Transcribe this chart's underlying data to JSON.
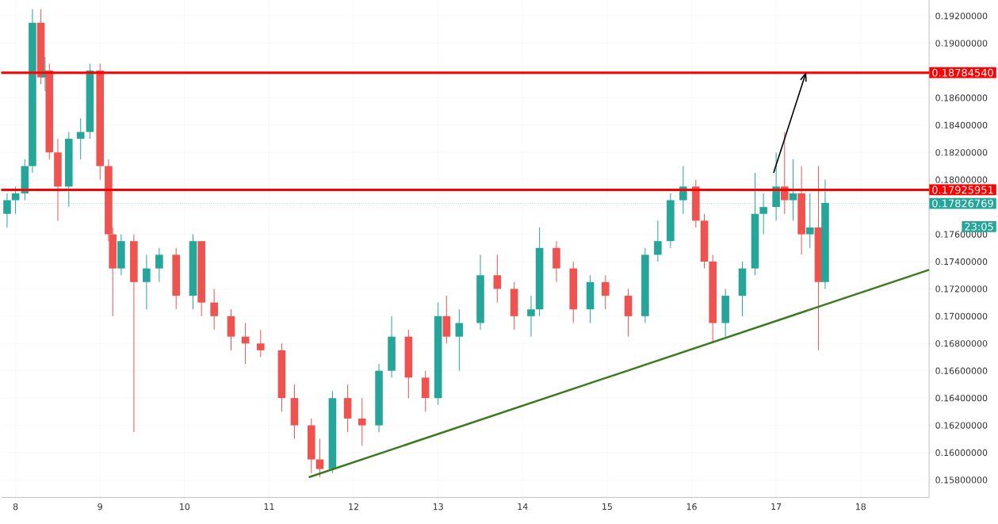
{
  "chart_data": {
    "type": "candlestick",
    "x": [
      7.9,
      8.0,
      8.11,
      8.2,
      8.3,
      8.35,
      8.4,
      8.5,
      8.63,
      8.77,
      8.88,
      9.0,
      9.1,
      9.15,
      9.25,
      9.4,
      9.55,
      9.7,
      9.9,
      10.1,
      10.2,
      10.35,
      10.55,
      10.72,
      10.9,
      11.15,
      11.3,
      11.5,
      11.6,
      11.75,
      11.93,
      12.1,
      12.3,
      12.45,
      12.65,
      12.85,
      13.0,
      13.1,
      13.25,
      13.5,
      13.7,
      13.9,
      14.1,
      14.2,
      14.4,
      14.6,
      14.8,
      14.98,
      15.25,
      15.45,
      15.6,
      15.75,
      15.9,
      16.05,
      16.15,
      16.25,
      16.4,
      16.6,
      16.75,
      16.85,
      17.0,
      17.1,
      17.2,
      17.3,
      17.4,
      17.5,
      17.58
    ],
    "ohlc": [
      [
        0.1775,
        0.179,
        0.1765,
        0.1785
      ],
      [
        0.1785,
        0.1795,
        0.1775,
        0.179
      ],
      [
        0.179,
        0.1815,
        0.1785,
        0.181
      ],
      [
        0.181,
        0.1925,
        0.1805,
        0.1915
      ],
      [
        0.1915,
        0.1925,
        0.187,
        0.1875
      ],
      [
        0.1875,
        0.189,
        0.1865,
        0.188
      ],
      [
        0.188,
        0.1885,
        0.1815,
        0.182
      ],
      [
        0.182,
        0.183,
        0.177,
        0.1795
      ],
      [
        0.1795,
        0.1835,
        0.178,
        0.183
      ],
      [
        0.183,
        0.1845,
        0.1815,
        0.1835
      ],
      [
        0.1835,
        0.1885,
        0.183,
        0.188
      ],
      [
        0.188,
        0.1885,
        0.18,
        0.181
      ],
      [
        0.181,
        0.1815,
        0.1755,
        0.176
      ],
      [
        0.176,
        0.1765,
        0.17,
        0.1735
      ],
      [
        0.1735,
        0.176,
        0.173,
        0.1755
      ],
      [
        0.1755,
        0.176,
        0.1615,
        0.1725
      ],
      [
        0.1725,
        0.1745,
        0.1705,
        0.1735
      ],
      [
        0.1735,
        0.175,
        0.1725,
        0.1745
      ],
      [
        0.1745,
        0.175,
        0.1705,
        0.1715
      ],
      [
        0.1715,
        0.176,
        0.1705,
        0.1755
      ],
      [
        0.1755,
        0.1755,
        0.17,
        0.171
      ],
      [
        0.171,
        0.172,
        0.169,
        0.17
      ],
      [
        0.17,
        0.1705,
        0.1675,
        0.1685
      ],
      [
        0.1685,
        0.1695,
        0.1665,
        0.168
      ],
      [
        0.168,
        0.169,
        0.167,
        0.1675
      ],
      [
        0.1675,
        0.168,
        0.163,
        0.164
      ],
      [
        0.164,
        0.165,
        0.161,
        0.162
      ],
      [
        0.162,
        0.1625,
        0.1585,
        0.1595
      ],
      [
        0.1595,
        0.161,
        0.1582,
        0.1588
      ],
      [
        0.1588,
        0.1645,
        0.1585,
        0.164
      ],
      [
        0.164,
        0.165,
        0.1615,
        0.1625
      ],
      [
        0.1625,
        0.164,
        0.1605,
        0.162
      ],
      [
        0.162,
        0.1665,
        0.1615,
        0.166
      ],
      [
        0.166,
        0.17,
        0.1655,
        0.1685
      ],
      [
        0.1685,
        0.169,
        0.164,
        0.1655
      ],
      [
        0.1655,
        0.166,
        0.163,
        0.164
      ],
      [
        0.164,
        0.171,
        0.1635,
        0.17
      ],
      [
        0.17,
        0.1715,
        0.168,
        0.1685
      ],
      [
        0.1685,
        0.1705,
        0.166,
        0.1695
      ],
      [
        0.1695,
        0.1745,
        0.169,
        0.173
      ],
      [
        0.173,
        0.1745,
        0.171,
        0.172
      ],
      [
        0.172,
        0.1725,
        0.169,
        0.17
      ],
      [
        0.17,
        0.1715,
        0.1685,
        0.1705
      ],
      [
        0.1705,
        0.1765,
        0.17,
        0.175
      ],
      [
        0.175,
        0.1755,
        0.1725,
        0.1735
      ],
      [
        0.1735,
        0.174,
        0.1695,
        0.1705
      ],
      [
        0.1705,
        0.173,
        0.1695,
        0.1725
      ],
      [
        0.1725,
        0.173,
        0.1705,
        0.1715
      ],
      [
        0.1715,
        0.172,
        0.1685,
        0.17
      ],
      [
        0.17,
        0.175,
        0.1695,
        0.1745
      ],
      [
        0.1745,
        0.177,
        0.174,
        0.1755
      ],
      [
        0.1755,
        0.179,
        0.175,
        0.1785
      ],
      [
        0.1785,
        0.181,
        0.1775,
        0.1795
      ],
      [
        0.1795,
        0.18,
        0.1765,
        0.177
      ],
      [
        0.177,
        0.1775,
        0.1735,
        0.174
      ],
      [
        0.174,
        0.1745,
        0.168,
        0.1695
      ],
      [
        0.1695,
        0.172,
        0.1685,
        0.1715
      ],
      [
        0.1715,
        0.174,
        0.17,
        0.1735
      ],
      [
        0.1735,
        0.1805,
        0.173,
        0.1775
      ],
      [
        0.1775,
        0.179,
        0.176,
        0.178
      ],
      [
        0.178,
        0.182,
        0.177,
        0.1795
      ],
      [
        0.1795,
        0.1835,
        0.1775,
        0.1785
      ],
      [
        0.1785,
        0.1815,
        0.177,
        0.179
      ],
      [
        0.179,
        0.181,
        0.1745,
        0.176
      ],
      [
        0.176,
        0.179,
        0.175,
        0.1765
      ],
      [
        0.1765,
        0.181,
        0.1675,
        0.1725
      ],
      [
        0.1725,
        0.18,
        0.172,
        0.1783
      ]
    ],
    "colors": [
      "#26a69a",
      "#26a69a",
      "#26a69a",
      "#26a69a",
      "#ef5350",
      "#26a69a",
      "#ef5350",
      "#ef5350",
      "#26a69a",
      "#26a69a",
      "#26a69a",
      "#ef5350",
      "#ef5350",
      "#ef5350",
      "#26a69a",
      "#ef5350",
      "#26a69a",
      "#26a69a",
      "#ef5350",
      "#26a69a",
      "#ef5350",
      "#ef5350",
      "#ef5350",
      "#ef5350",
      "#ef5350",
      "#ef5350",
      "#ef5350",
      "#ef5350",
      "#ef5350",
      "#26a69a",
      "#ef5350",
      "#ef5350",
      "#26a69a",
      "#26a69a",
      "#ef5350",
      "#ef5350",
      "#26a69a",
      "#ef5350",
      "#26a69a",
      "#26a69a",
      "#ef5350",
      "#ef5350",
      "#26a69a",
      "#26a69a",
      "#ef5350",
      "#ef5350",
      "#26a69a",
      "#ef5350",
      "#ef5350",
      "#26a69a",
      "#26a69a",
      "#26a69a",
      "#26a69a",
      "#ef5350",
      "#ef5350",
      "#ef5350",
      "#26a69a",
      "#26a69a",
      "#26a69a",
      "#26a69a",
      "#26a69a",
      "#ef5350",
      "#26a69a",
      "#ef5350",
      "#26a69a",
      "#ef5350",
      "#26a69a"
    ],
    "series": [
      {
        "type": "line",
        "color": "#3a7a1e",
        "x": [
          11.47,
          18.81
        ],
        "values": [
          0.1582,
          0.1734
        ]
      },
      {
        "type": "line",
        "color": "#000000",
        "x": [
          16.97,
          17.35
        ],
        "values": [
          0.1805,
          0.1878
        ]
      }
    ],
    "xlim": [
      7.83,
      18.81
    ],
    "ylim": [
      0.15672,
      0.19316
    ],
    "xticks": [
      8,
      9,
      10,
      11,
      12,
      13,
      14,
      15,
      16,
      17,
      18
    ],
    "yticks": [
      {
        "value": 0.158,
        "label": "0.15800000"
      },
      {
        "value": 0.16,
        "label": "0.16000000"
      },
      {
        "value": 0.162,
        "label": "0.16200000"
      },
      {
        "value": 0.164,
        "label": "0.16400000"
      },
      {
        "value": 0.166,
        "label": "0.16600000"
      },
      {
        "value": 0.168,
        "label": "0.16800000"
      },
      {
        "value": 0.17,
        "label": "0.17000000"
      },
      {
        "value": 0.172,
        "label": "0.17200000"
      },
      {
        "value": 0.174,
        "label": "0.17400000"
      },
      {
        "value": 0.176,
        "label": "0.17600000"
      },
      {
        "value": 0.178,
        "label": null
      },
      {
        "value": 0.18,
        "label": "0.18000000"
      },
      {
        "value": 0.182,
        "label": "0.18200000"
      },
      {
        "value": 0.184,
        "label": "0.18400000"
      },
      {
        "value": 0.186,
        "label": "0.18600000"
      },
      {
        "value": 0.188,
        "label": null
      },
      {
        "value": 0.19,
        "label": "0.19000000"
      },
      {
        "value": 0.192,
        "label": "0.19200000"
      }
    ],
    "grid": true,
    "ref_lines": [
      {
        "axis": "y",
        "value": 0.1878454,
        "label": "0.18784540",
        "color": "#ff0000",
        "line_style": "solid"
      },
      {
        "axis": "y",
        "value": 0.17925951,
        "label": "0.17925951",
        "color": "#ff0000",
        "line_style": "solid"
      },
      {
        "axis": "y",
        "value": 0.17826769,
        "label": "0.17826769",
        "color": "#26a69a",
        "line_style": "dotted"
      }
    ],
    "annotations": [
      "23:05"
    ]
  }
}
